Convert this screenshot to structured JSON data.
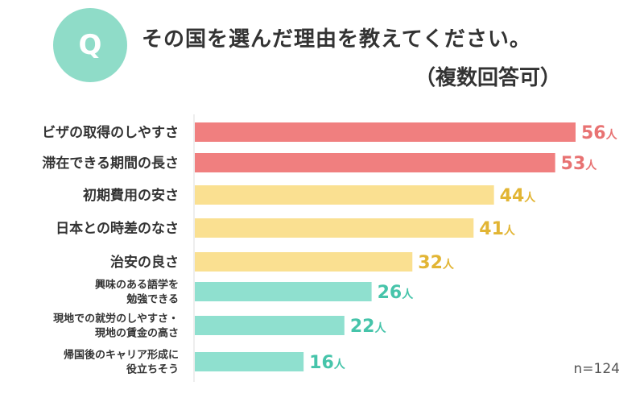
{
  "header": {
    "q_badge": "Q",
    "title": "その国を選んだ理由を教えてください。",
    "subtitle": "（複数回答可）"
  },
  "note": "n=124",
  "unit": "人",
  "colors": {
    "badge": "#8fdcc8",
    "red": "#f07f7f",
    "yellow": "#fae091",
    "teal": "#8fe0cf",
    "red_text": "#e87272",
    "yellow_text": "#e2b534",
    "teal_text": "#46c4aa"
  },
  "chart_data": {
    "type": "bar",
    "orientation": "horizontal",
    "categories": [
      [
        "ビザの取得のしやすさ"
      ],
      [
        "滞在できる期間の長さ"
      ],
      [
        "初期費用の安さ"
      ],
      [
        "日本との時差のなさ"
      ],
      [
        "治安の良さ"
      ],
      [
        "興味のある語学を",
        "勉強できる"
      ],
      [
        "現地での就労のしやすさ・",
        "現地の賃金の高さ"
      ],
      [
        "帰国後のキャリア形成に",
        "役立ちそう"
      ]
    ],
    "values": [
      56,
      53,
      44,
      41,
      32,
      26,
      22,
      16
    ],
    "color_groups": [
      "red",
      "red",
      "yellow",
      "yellow",
      "yellow",
      "teal",
      "teal",
      "teal"
    ],
    "grid": false,
    "legend": "none"
  }
}
